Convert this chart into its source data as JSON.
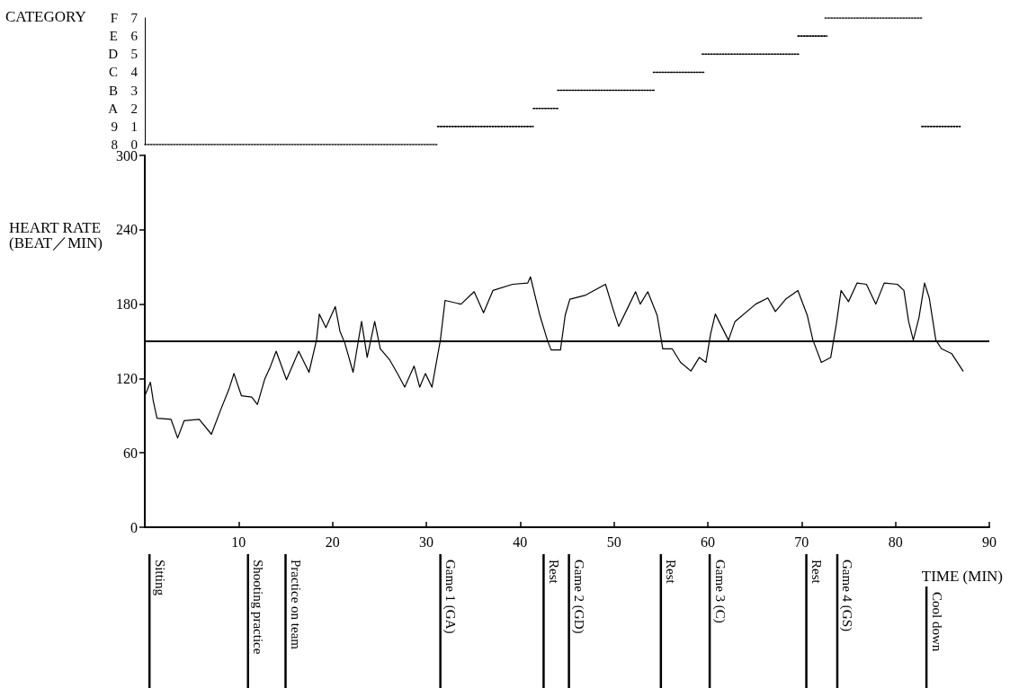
{
  "chart_data": [
    {
      "type": "line",
      "y2label": "CATEGORY",
      "xlim": [
        0,
        90
      ],
      "ylim": [
        0,
        7
      ],
      "yticks": [
        0,
        1,
        2,
        3,
        4,
        5,
        6,
        7
      ],
      "y2lim": [
        8,
        15
      ],
      "y2ticks": [
        8,
        9,
        {
          "value": 10,
          "label": "A"
        },
        {
          "value": 11,
          "label": "B"
        },
        {
          "value": 12,
          "label": "C"
        },
        {
          "value": 13,
          "label": "D"
        },
        {
          "value": 14,
          "label": "E"
        },
        {
          "value": 15,
          "label": "F"
        }
      ],
      "tick_labels": "y",
      "marker": "none",
      "line_style": "dotted",
      "series": [
        {
          "color": "#000000",
          "x": [
            0,
            31.2
          ],
          "values": [
            0,
            0
          ]
        },
        {
          "color": "#000000",
          "x": [
            31.2,
            41.4
          ],
          "values": [
            1,
            1
          ]
        },
        {
          "color": "#000000",
          "x": [
            41.4,
            44.1
          ],
          "values": [
            2,
            2
          ]
        },
        {
          "color": "#000000",
          "x": [
            44.0,
            54.3
          ],
          "values": [
            3,
            3
          ]
        },
        {
          "color": "#000000",
          "x": [
            54.2,
            59.6
          ],
          "values": [
            4,
            4
          ]
        },
        {
          "color": "#000000",
          "x": [
            59.4,
            69.7
          ],
          "values": [
            5,
            5
          ]
        },
        {
          "color": "#000000",
          "x": [
            69.6,
            72.7
          ],
          "values": [
            6,
            6
          ]
        },
        {
          "color": "#000000",
          "x": [
            72.5,
            82.8
          ],
          "values": [
            7,
            7
          ]
        },
        {
          "color": "#000000",
          "x": [
            82.8,
            86.9
          ],
          "values": [
            1,
            1
          ]
        }
      ]
    },
    {
      "type": "line",
      "xlabel": "TIME (MIN)",
      "ylabel": "HEART RATE\n(BEAT／MIN)",
      "xlim": [
        0,
        90
      ],
      "xticks": [
        10,
        20,
        30,
        40,
        50,
        60,
        70,
        80,
        90
      ],
      "ylim": [
        0,
        300
      ],
      "yticks": [
        0,
        60,
        120,
        180,
        240,
        300
      ],
      "marker": "none",
      "line_style": "solid",
      "ref_lines": [
        {
          "axis": "y",
          "value": 150,
          "color": "#000000"
        },
        {
          "axis": "x",
          "value": 0.5,
          "label": "Sitting"
        },
        {
          "axis": "x",
          "value": 11.0,
          "label": "Shooting practice"
        },
        {
          "axis": "x",
          "value": 15.0,
          "label": "Practice on team"
        },
        {
          "axis": "x",
          "value": 31.5,
          "label": "Game 1 (GA)"
        },
        {
          "axis": "x",
          "value": 42.5,
          "label": "Rest"
        },
        {
          "axis": "x",
          "value": 45.2,
          "label": "Game 2 (GD)"
        },
        {
          "axis": "x",
          "value": 55.0,
          "label": "Rest"
        },
        {
          "axis": "x",
          "value": 60.2,
          "label": "Game 3 (C)"
        },
        {
          "axis": "x",
          "value": 70.5,
          "label": "Rest"
        },
        {
          "axis": "x",
          "value": 73.8,
          "label": "Game 4 (GS)"
        },
        {
          "axis": "x",
          "value": 83.3,
          "label": "Cool down"
        }
      ],
      "series": [
        {
          "color": "#000000",
          "x": [
            0,
            0.6,
            0.9,
            1.3,
            2.8,
            3.5,
            4.2,
            5.8,
            7.1,
            8.1,
            9.0,
            9.5,
            10.3,
            11.4,
            12.0,
            12.8,
            13.3,
            14.0,
            15.1,
            16.4,
            17.5,
            18.3,
            18.6,
            19.3,
            20.3,
            20.8,
            21.3,
            22.2,
            23.1,
            23.7,
            24.5,
            25.1,
            26.1,
            27.0,
            27.7,
            28.7,
            29.3,
            29.9,
            30.6,
            31.5,
            32.0,
            33.7,
            35.1,
            36.1,
            37.1,
            39.2,
            40.8,
            41.1,
            42.1,
            42.9,
            43.3,
            44.3,
            44.8,
            45.3,
            46.9,
            49.1,
            49.9,
            50.5,
            51.4,
            52.3,
            52.8,
            53.6,
            54.6,
            55.2,
            56.2,
            57.1,
            58.2,
            59.1,
            59.8,
            60.3,
            60.8,
            62.2,
            62.9,
            65.1,
            66.4,
            67.2,
            68.3,
            69.6,
            70.6,
            71.2,
            72.1,
            73.1,
            73.7,
            74.2,
            75.0,
            75.9,
            76.9,
            77.9,
            78.8,
            80.2,
            80.9,
            81.4,
            81.9,
            82.5,
            83.1,
            83.6,
            84.3,
            84.9,
            86.0,
            87.2
          ],
          "values": [
            106,
            117,
            102,
            88,
            87,
            72,
            86,
            87,
            75,
            95,
            112,
            124,
            106,
            105,
            99,
            120,
            128,
            142,
            119,
            142,
            125,
            151,
            172,
            161,
            178,
            158,
            149,
            125,
            166,
            137,
            166,
            144,
            135,
            123,
            113,
            130,
            113,
            124,
            113,
            151,
            183,
            180,
            190,
            173,
            191,
            196,
            197,
            202,
            171,
            151,
            143,
            143,
            171,
            184,
            187,
            196,
            176,
            162,
            176,
            190,
            180,
            190,
            171,
            144,
            144,
            133,
            126,
            137,
            133,
            156,
            172,
            151,
            166,
            180,
            185,
            174,
            184,
            191,
            171,
            151,
            133,
            137,
            164,
            191,
            182,
            197,
            196,
            180,
            197,
            196,
            191,
            166,
            151,
            169,
            197,
            185,
            151,
            144,
            140,
            126
          ]
        }
      ]
    }
  ]
}
